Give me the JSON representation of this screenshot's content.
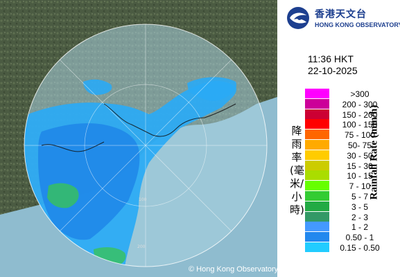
{
  "logo": {
    "name_zh": "香港天文台",
    "name_en": "HONG KONG OBSERVATORY"
  },
  "timestamp": {
    "time": "11:36 HKT",
    "date": "22-10-2025"
  },
  "legend": {
    "title_zh": "降雨率(毫米/小時)",
    "title_en": "Rainfall Rate (mm/h)",
    "bins": [
      {
        "label": ">300",
        "color": "#ff00ff"
      },
      {
        "label": "200 - 300",
        "color": "#cc0099"
      },
      {
        "label": "150 - 200",
        "color": "#cc0033"
      },
      {
        "label": "100 - 150",
        "color": "#ff0000"
      },
      {
        "label": "75 - 100",
        "color": "#ff6600"
      },
      {
        "label": "50- 75",
        "color": "#ffaa00"
      },
      {
        "label": "30 - 50",
        "color": "#ffcc00"
      },
      {
        "label": "15 - 30",
        "color": "#cccc00"
      },
      {
        "label": "10 - 15",
        "color": "#aadd00"
      },
      {
        "label": "7 - 10",
        "color": "#66ff00"
      },
      {
        "label": "5 - 7",
        "color": "#33cc33"
      },
      {
        "label": "3 - 5",
        "color": "#22aa44"
      },
      {
        "label": "2 - 3",
        "color": "#339966"
      },
      {
        "label": "1 - 2",
        "color": "#4499ff"
      },
      {
        "label": "0.50 - 1",
        "color": "#2288ee"
      },
      {
        "label": "0.15 - 0.50",
        "color": "#22ccff"
      }
    ]
  },
  "map": {
    "range_ring_labels": [
      "100",
      "200"
    ],
    "copyright": "© Hong Kong Observatory"
  },
  "colors": {
    "land": "#4a5a40",
    "sea": "#9ec7d8",
    "radar_range": "#7fb2c6",
    "rain_light": "#29aaff",
    "rain_medium": "#1d7fe6",
    "rain_green": "#33bb55"
  }
}
